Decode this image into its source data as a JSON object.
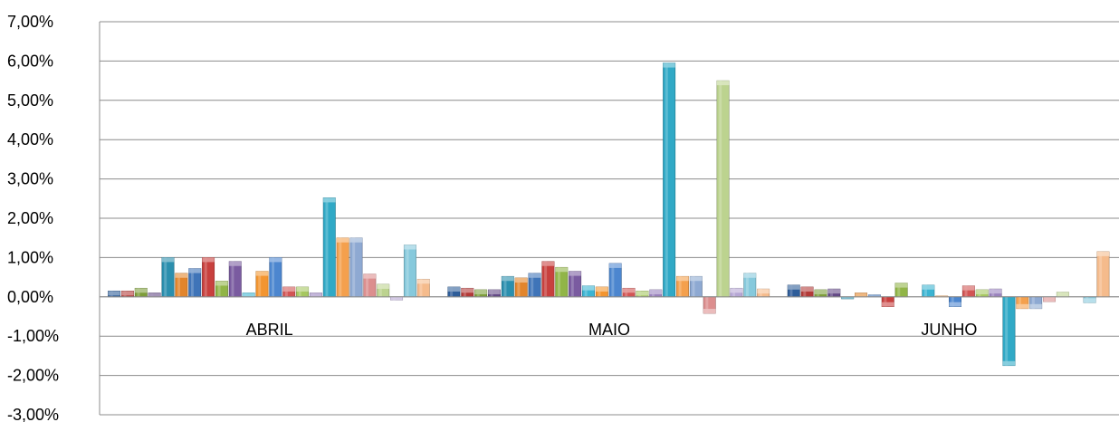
{
  "chart_data": {
    "type": "bar",
    "categories": [
      "ABRIL",
      "MAIO",
      "JUNHO"
    ],
    "ylim": [
      -3.0,
      7.0
    ],
    "yticks": [
      7.0,
      6.0,
      5.0,
      4.0,
      3.0,
      2.0,
      1.0,
      0.0,
      -1.0,
      -2.0,
      -3.0
    ],
    "ytick_labels": [
      "7,00%",
      "6,00%",
      "5,00%",
      "4,00%",
      "3,00%",
      "2,00%",
      "1,00%",
      "0,00%",
      "-1,00%",
      "-2,00%",
      "-3,00%"
    ],
    "grid": true,
    "legend": "none",
    "series": [
      {
        "color": "#2E5D99",
        "values": [
          0.15,
          0.25,
          0.3
        ]
      },
      {
        "color": "#B23A38",
        "values": [
          0.15,
          0.22,
          0.25
        ]
      },
      {
        "color": "#7E9E3A",
        "values": [
          0.22,
          0.18,
          0.18
        ]
      },
      {
        "color": "#644A86",
        "values": [
          0.1,
          0.18,
          0.2
        ]
      },
      {
        "color": "#2B8FAE",
        "values": [
          1.0,
          0.52,
          -0.05
        ]
      },
      {
        "color": "#E2852C",
        "values": [
          0.6,
          0.48,
          0.1
        ]
      },
      {
        "color": "#3F74B8",
        "values": [
          0.72,
          0.6,
          0.05
        ]
      },
      {
        "color": "#C8403E",
        "values": [
          1.0,
          0.9,
          -0.25
        ]
      },
      {
        "color": "#91B547",
        "values": [
          0.4,
          0.75,
          0.35
        ]
      },
      {
        "color": "#7A5BA0",
        "values": [
          0.9,
          0.65,
          0.0
        ]
      },
      {
        "color": "#3CB4D2",
        "values": [
          0.1,
          0.28,
          0.3
        ]
      },
      {
        "color": "#F39530",
        "values": [
          0.65,
          0.25,
          0.02
        ]
      },
      {
        "color": "#4C86CF",
        "values": [
          1.0,
          0.85,
          -0.25
        ]
      },
      {
        "color": "#D25554",
        "values": [
          0.25,
          0.22,
          0.28
        ]
      },
      {
        "color": "#A6C760",
        "values": [
          0.25,
          0.15,
          0.18
        ]
      },
      {
        "color": "#9A82BD",
        "values": [
          0.1,
          0.18,
          0.2
        ]
      },
      {
        "color": "#30A9C6",
        "values": [
          2.52,
          5.95,
          -1.75
        ]
      },
      {
        "color": "#F4A04D",
        "values": [
          1.5,
          0.52,
          -0.3
        ]
      },
      {
        "color": "#8EA9D2",
        "values": [
          1.5,
          0.52,
          -0.3
        ]
      },
      {
        "color": "#DC8E8E",
        "values": [
          0.58,
          -0.42,
          -0.12
        ]
      },
      {
        "color": "#BCD38F",
        "values": [
          0.32,
          5.5,
          0.12
        ]
      },
      {
        "color": "#B6A6D4",
        "values": [
          -0.08,
          0.22,
          0.0
        ]
      },
      {
        "color": "#86C9DC",
        "values": [
          1.32,
          0.6,
          -0.15
        ]
      },
      {
        "color": "#F5BB8C",
        "values": [
          0.45,
          0.2,
          1.15
        ]
      }
    ]
  }
}
